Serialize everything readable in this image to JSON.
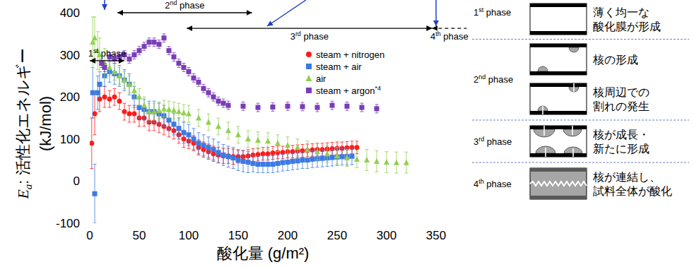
{
  "chart_data": {
    "type": "scatter",
    "xlabel": "酸化量 (g/m²)",
    "ylabel": "Ea: 活性化エネルギー (kJ/mol)",
    "xlim": [
      0,
      350
    ],
    "xticks": [
      0,
      50,
      100,
      150,
      200,
      250,
      300,
      350
    ],
    "ylim": [
      -100,
      400
    ],
    "yticks": [
      -100,
      0,
      100,
      200,
      300,
      400
    ],
    "grid": false,
    "legend": "upper right",
    "series": [
      {
        "name": "steam + nitrogen",
        "color": "#ff1a1a",
        "marker": "circle",
        "x": [
          2,
          5,
          10,
          15,
          20,
          25,
          30,
          35,
          40,
          45,
          50,
          55,
          60,
          65,
          70,
          75,
          80,
          85,
          90,
          95,
          100,
          105,
          110,
          115,
          120,
          125,
          130,
          135,
          140,
          145,
          150,
          155,
          160,
          165,
          170,
          175,
          180,
          185,
          190,
          195,
          200,
          205,
          210,
          215,
          220,
          225,
          230,
          235,
          240,
          245,
          250,
          255,
          260,
          265,
          270
        ],
        "values": [
          90,
          160,
          195,
          200,
          195,
          200,
          190,
          165,
          160,
          160,
          150,
          150,
          140,
          140,
          135,
          130,
          125,
          120,
          110,
          100,
          95,
          90,
          80,
          75,
          70,
          65,
          62,
          60,
          60,
          58,
          58,
          58,
          60,
          62,
          63,
          65,
          65,
          67,
          68,
          68,
          70,
          70,
          71,
          72,
          73,
          74,
          75,
          75,
          76,
          77,
          78,
          78,
          79,
          80,
          80
        ],
        "errors": [
          60,
          50,
          30,
          25,
          20,
          20,
          20,
          20,
          20,
          20,
          20,
          20,
          20,
          20,
          20,
          20,
          20,
          20,
          20,
          20,
          18,
          18,
          18,
          18,
          18,
          18,
          18,
          18,
          18,
          18,
          15,
          15,
          15,
          15,
          15,
          15,
          15,
          15,
          15,
          15,
          15,
          15,
          15,
          15,
          15,
          15,
          15,
          15,
          15,
          15,
          15,
          15,
          15,
          15,
          15
        ]
      },
      {
        "name": "steam + air",
        "color": "#3b7ae4",
        "marker": "square",
        "x": [
          3,
          5,
          8,
          10,
          15,
          20,
          25,
          30,
          35,
          40,
          45,
          50,
          55,
          60,
          65,
          70,
          75,
          80,
          85,
          90,
          95,
          100,
          105,
          110,
          115,
          120,
          125,
          130,
          135,
          140,
          145,
          150,
          155,
          160,
          165,
          170,
          175,
          180,
          185,
          190,
          195,
          200,
          205,
          210,
          215,
          220,
          225,
          230,
          235,
          240,
          245,
          250,
          255,
          260,
          265
        ],
        "values": [
          210,
          -30,
          210,
          230,
          250,
          260,
          255,
          250,
          240,
          230,
          200,
          175,
          170,
          165,
          165,
          160,
          155,
          145,
          135,
          125,
          115,
          110,
          100,
          90,
          85,
          80,
          75,
          68,
          62,
          58,
          55,
          50,
          47,
          45,
          42,
          40,
          40,
          40,
          40,
          42,
          44,
          45,
          47,
          48,
          50,
          50,
          52,
          53,
          54,
          55,
          56,
          57,
          58,
          58,
          59
        ],
        "errors": [
          60,
          70,
          40,
          30,
          25,
          25,
          25,
          25,
          25,
          25,
          25,
          25,
          25,
          25,
          25,
          25,
          25,
          25,
          25,
          25,
          25,
          25,
          25,
          25,
          25,
          25,
          25,
          25,
          25,
          25,
          25,
          25,
          25,
          25,
          20,
          20,
          20,
          20,
          20,
          20,
          20,
          20,
          20,
          20,
          20,
          20,
          20,
          20,
          20,
          20,
          20,
          20,
          20,
          20,
          20
        ]
      },
      {
        "name": "air",
        "color": "#92d050",
        "marker": "triangle",
        "x": [
          3,
          5,
          8,
          10,
          15,
          20,
          25,
          30,
          35,
          40,
          45,
          50,
          55,
          60,
          65,
          70,
          75,
          80,
          85,
          90,
          95,
          100,
          110,
          120,
          130,
          140,
          150,
          160,
          170,
          180,
          190,
          200,
          210,
          220,
          230,
          240,
          250,
          260,
          270,
          280,
          290,
          300,
          310,
          320
        ],
        "values": [
          330,
          340,
          310,
          300,
          280,
          270,
          260,
          250,
          240,
          230,
          215,
          200,
          180,
          165,
          165,
          168,
          172,
          170,
          168,
          165,
          162,
          160,
          150,
          140,
          130,
          120,
          110,
          100,
          97,
          95,
          90,
          85,
          80,
          75,
          70,
          65,
          60,
          55,
          52,
          50,
          47,
          45,
          44,
          44
        ],
        "errors": [
          60,
          50,
          45,
          40,
          35,
          20,
          20,
          20,
          20,
          20,
          20,
          20,
          20,
          20,
          20,
          20,
          20,
          20,
          20,
          20,
          20,
          20,
          20,
          20,
          20,
          20,
          20,
          20,
          20,
          20,
          20,
          20,
          20,
          20,
          20,
          20,
          20,
          20,
          20,
          25,
          25,
          25,
          25,
          25
        ]
      },
      {
        "name": "steam + argon*4",
        "color": "#7a3db8",
        "marker": "square",
        "x": [
          12,
          15,
          20,
          25,
          30,
          35,
          40,
          45,
          50,
          55,
          60,
          65,
          70,
          75,
          80,
          85,
          90,
          95,
          100,
          105,
          110,
          115,
          120,
          125,
          130,
          135,
          140,
          155,
          170,
          185,
          200,
          215,
          230,
          245,
          260,
          275,
          290
        ],
        "values": [
          280,
          270,
          295,
          290,
          295,
          300,
          290,
          300,
          310,
          320,
          330,
          330,
          325,
          340,
          310,
          295,
          280,
          270,
          260,
          245,
          235,
          220,
          210,
          200,
          190,
          185,
          180,
          178,
          175,
          176,
          178,
          177,
          175,
          180,
          178,
          175,
          172
        ],
        "errors": [
          10,
          10,
          10,
          10,
          10,
          10,
          10,
          10,
          10,
          10,
          10,
          10,
          10,
          10,
          10,
          10,
          10,
          10,
          10,
          10,
          10,
          10,
          10,
          10,
          10,
          10,
          10,
          10,
          10,
          10,
          10,
          10,
          10,
          10,
          10,
          10,
          10
        ]
      }
    ],
    "annotations": [
      {
        "text": "1st phase",
        "x_start": 0,
        "x_end": 35,
        "y": 286
      },
      {
        "text": "2nd phase",
        "x_start": 28,
        "x_end": 164,
        "y": 400
      },
      {
        "text": "3rd phase",
        "x_start": 98,
        "x_end": 346,
        "y": 363
      },
      {
        "text": "4th phase",
        "x_start": 346,
        "x_end": 381,
        "y": 363,
        "line_style": "dashed"
      }
    ]
  },
  "diagram": {
    "phases": [
      {
        "label": "1st phase",
        "steps": [
          {
            "text": [
              "薄く均一な",
              "酸化膜が形成"
            ]
          }
        ]
      },
      {
        "label": "2nd phase",
        "steps": [
          {
            "text": [
              "核の形成"
            ]
          },
          {
            "text": [
              "核周辺での",
              "割れの発生"
            ]
          }
        ]
      },
      {
        "label": "3rd phase",
        "steps": [
          {
            "text": [
              "核が成長・",
              "新たに形成"
            ]
          }
        ]
      },
      {
        "label": "4th phase",
        "steps": [
          {
            "text": [
              "核が連結し、",
              "試料全体が酸化"
            ]
          }
        ]
      }
    ]
  }
}
